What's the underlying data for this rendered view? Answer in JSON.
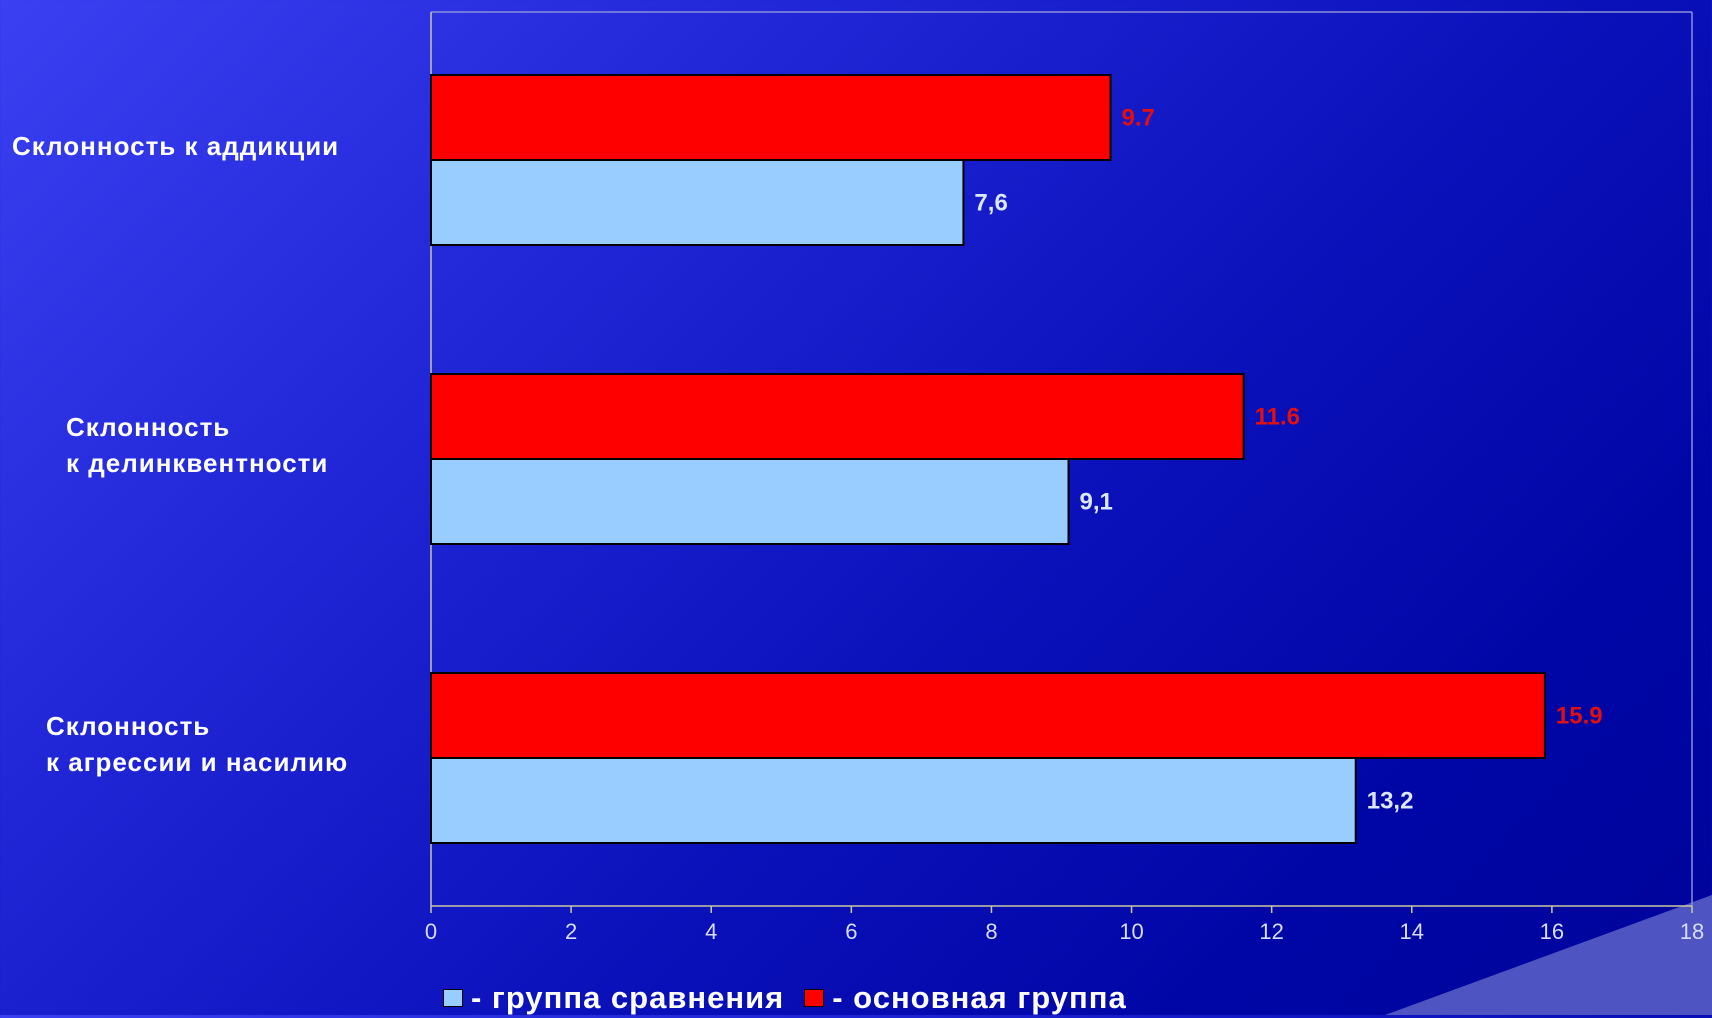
{
  "title": "",
  "colors": {
    "series_main": "#ff0000",
    "series_compare": "#99ccff",
    "main_label": "#e01010",
    "compare_label": "#dbe6ff",
    "background": "#0a10b8"
  },
  "legend": {
    "items": [
      {
        "label": "- группа сравнения",
        "color": "#99ccff"
      },
      {
        "label": "- основная группа",
        "color": "#ff0000"
      }
    ]
  },
  "chart_data": {
    "type": "bar",
    "orientation": "horizontal",
    "categories": [
      [
        "Склонность к аддикции"
      ],
      [
        "Склонность",
        "к делинквентности"
      ],
      [
        "Склонность",
        "к агрессии и насилию"
      ]
    ],
    "series": [
      {
        "name": "основная группа",
        "color": "#ff0000",
        "values": [
          9.7,
          11.6,
          15.9
        ],
        "labels": [
          "9.7",
          "11.6",
          "15.9"
        ]
      },
      {
        "name": "группа сравнения",
        "color": "#99ccff",
        "values": [
          7.6,
          9.1,
          13.2
        ],
        "labels": [
          "7,6",
          "9,1",
          "13,2"
        ]
      }
    ],
    "xlim": [
      0,
      18
    ],
    "xticks": [
      0,
      2,
      4,
      6,
      8,
      10,
      12,
      14,
      16,
      18
    ],
    "xlabel": "",
    "ylabel": "",
    "grid": false,
    "legend_position": "bottom"
  }
}
